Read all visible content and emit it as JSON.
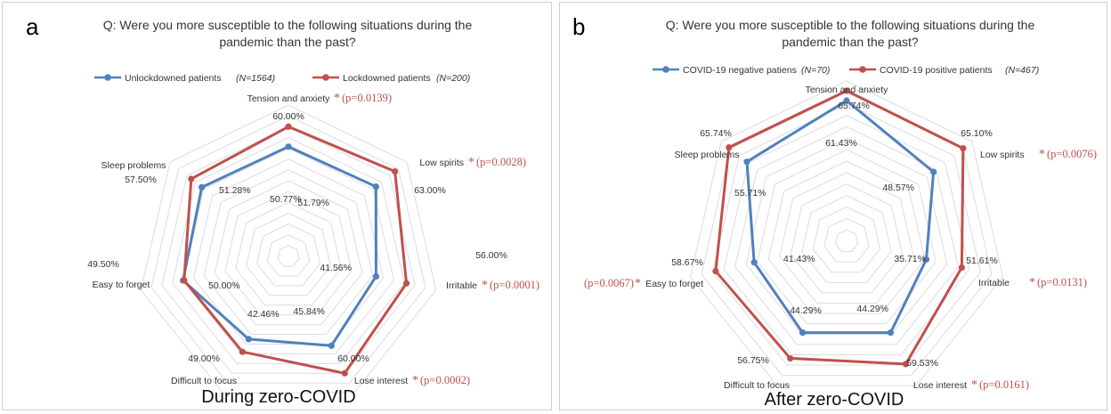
{
  "question_line1": "Q: Were you more susceptible to the following situations during the",
  "question_line2": "pandemic than  the past?",
  "chart_data": [
    {
      "panel_label": "a",
      "type": "radar",
      "subtitle": "During zero-COVID",
      "categories": [
        "Tension and anxiety",
        "Low spirits",
        "Irritable",
        "Lose interest",
        "Difficult to focus",
        "Easy to forget",
        "Sleep problems"
      ],
      "significance": [
        "(p=0.0139)",
        "(p=0.0028)",
        "(p=0.0001)",
        "(p=0.0002)",
        "",
        "",
        ""
      ],
      "series": [
        {
          "name": "Unlockdowned patients",
          "n": "(N=1564)",
          "color": "#4f81bd",
          "values": [
            50.77,
            51.79,
            41.56,
            45.84,
            42.46,
            50.0,
            51.28
          ],
          "labels": [
            "50.77%",
            "51.79%",
            "41.56%",
            "45.84%",
            "42.46%",
            "50.00%",
            "51.28%"
          ]
        },
        {
          "name": "Lockdowned patients",
          "n": "(N=200)",
          "color": "#c0504d",
          "values": [
            60.0,
            63.0,
            56.0,
            60.0,
            49.0,
            49.5,
            57.5
          ],
          "labels": [
            "60.00%",
            "63.00%",
            "56.00%",
            "60.00%",
            "49.00%",
            "49.50%",
            "57.50%"
          ]
        }
      ]
    },
    {
      "panel_label": "b",
      "type": "radar",
      "subtitle": "After zero-COVID",
      "categories": [
        "Tension and anxiety",
        "Low spirits",
        "Irritable",
        "Lose interest",
        "Difficult to focus",
        "Easy to forget",
        "Sleep problems"
      ],
      "significance": [
        "",
        "(p=0.0076)",
        "(p=0.0131)",
        "(p=0.0161)",
        "",
        "(p=0.0067)",
        ""
      ],
      "series": [
        {
          "name": "COVID-19 negative patiens",
          "n": "(N=70)",
          "color": "#4f81bd",
          "values": [
            61.43,
            48.57,
            35.71,
            44.29,
            44.29,
            41.43,
            55.71
          ],
          "labels": [
            "61.43%",
            "48.57%",
            "35.71%",
            "44.29%",
            "44.29%",
            "41.43%",
            "55.71%"
          ]
        },
        {
          "name": "COVID-19 positive patients",
          "n": "(N=467)",
          "color": "#c0504d",
          "values": [
            65.74,
            65.1,
            51.61,
            59.53,
            56.75,
            58.67,
            65.74
          ],
          "labels": [
            "65.74%",
            "65.10%",
            "51.61%",
            "59.53%",
            "56.75%",
            "58.67%",
            "65.74%"
          ]
        }
      ]
    }
  ]
}
